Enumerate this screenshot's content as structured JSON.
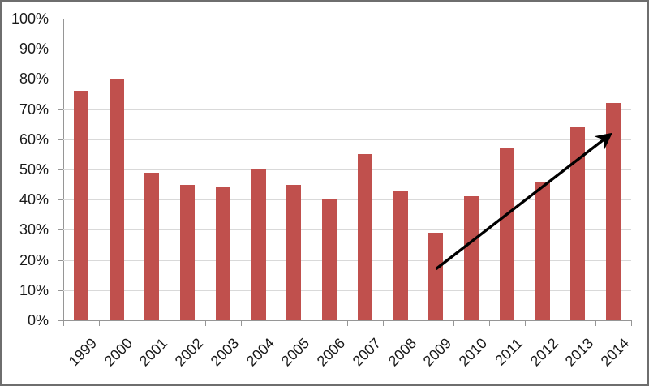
{
  "chart_data": {
    "type": "bar",
    "title": "",
    "xlabel": "",
    "ylabel": "",
    "categories": [
      "1999",
      "2000",
      "2001",
      "2002",
      "2003",
      "2004",
      "2005",
      "2006",
      "2007",
      "2008",
      "2009",
      "2010",
      "2011",
      "2012",
      "2013",
      "2014"
    ],
    "values": [
      76,
      80,
      49,
      45,
      44,
      50,
      45,
      40,
      55,
      43,
      29,
      41,
      57,
      46,
      64,
      72
    ],
    "ylim": [
      0,
      100
    ],
    "ytick_values": [
      0,
      10,
      20,
      30,
      40,
      50,
      60,
      70,
      80,
      90,
      100
    ],
    "ytick_labels": [
      "0%",
      "10%",
      "20%",
      "30%",
      "40%",
      "50%",
      "60%",
      "70%",
      "80%",
      "90%",
      "100%"
    ],
    "grid": "horizontal",
    "legend": "none",
    "annotation_arrow": {
      "description": "upward trend arrow from 2009 bar toward 2014 bar",
      "from": {
        "category_index": 10.5,
        "value": 17
      },
      "to": {
        "category_index": 15.4,
        "value": 61.5
      }
    }
  },
  "colors": {
    "bar": "#C0504D",
    "gridline": "#D9D9D9",
    "axis": "#969696",
    "text": "#1A1A1A",
    "frame_border": "#6E6E6E",
    "background": "#FFFFFF",
    "arrow": "#000000"
  }
}
